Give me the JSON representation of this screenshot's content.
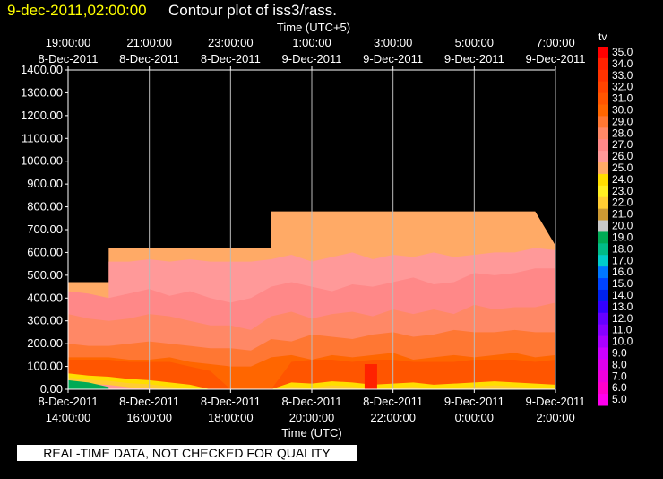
{
  "header": {
    "date_text": "9-dec-2011,02:00:00",
    "title": "Contour plot of iss3/rass."
  },
  "footer_note": "REAL-TIME DATA, NOT CHECKED FOR QUALITY",
  "chart_data": {
    "type": "heatmap",
    "top_axis_label": "Time (UTC+5)",
    "top_ticks": [
      [
        "19:00:00",
        "8-Dec-2011"
      ],
      [
        "21:00:00",
        "8-Dec-2011"
      ],
      [
        "23:00:00",
        "8-Dec-2011"
      ],
      [
        "1:00:00",
        "9-Dec-2011"
      ],
      [
        "3:00:00",
        "9-Dec-2011"
      ],
      [
        "5:00:00",
        "9-Dec-2011"
      ],
      [
        "7:00:00",
        "9-Dec-2011"
      ]
    ],
    "xlabel": "Time (UTC)",
    "bottom_ticks": [
      [
        "8-Dec-2011",
        "14:00:00"
      ],
      [
        "8-Dec-2011",
        "16:00:00"
      ],
      [
        "8-Dec-2011",
        "18:00:00"
      ],
      [
        "8-Dec-2011",
        "20:00:00"
      ],
      [
        "8-Dec-2011",
        "22:00:00"
      ],
      [
        "9-Dec-2011",
        "0:00:00"
      ],
      [
        "9-Dec-2011",
        "2:00:00"
      ]
    ],
    "xlim_hours_utc": [
      14.0,
      2.0
    ],
    "y_ticks": [
      "0.00",
      "100.00",
      "200.00",
      "300.00",
      "400.00",
      "500.00",
      "600.00",
      "700.00",
      "800.00",
      "900.00",
      "1000.00",
      "1100.00",
      "1200.00",
      "1300.00",
      "1400.00"
    ],
    "ylim": [
      0,
      1400
    ],
    "grid": "vertical lines at major time ticks",
    "colorbar": {
      "label": "tv",
      "levels": [
        "35.0",
        "34.0",
        "33.0",
        "32.0",
        "31.0",
        "30.0",
        "29.0",
        "28.0",
        "27.0",
        "26.0",
        "25.0",
        "24.0",
        "23.0",
        "22.0",
        "21.0",
        "20.0",
        "19.0",
        "18.0",
        "17.0",
        "16.0",
        "15.0",
        "14.0",
        "13.0",
        "12.0",
        "11.0",
        "10.0",
        "9.0",
        "8.0",
        "7.0",
        "6.0",
        "5.0"
      ],
      "colors": [
        "#ff0000",
        "#ff2200",
        "#ff3300",
        "#ff4400",
        "#ff5500",
        "#ff6600",
        "#ff7733",
        "#ff8866",
        "#ff8888",
        "#ff9999",
        "#ffaa66",
        "#ffdd00",
        "#ffee22",
        "#ffcc33",
        "#cc9933",
        "#c8c8c8",
        "#00aa55",
        "#00bb88",
        "#00cccc",
        "#0077ff",
        "#0044ff",
        "#0022ee",
        "#3300ff",
        "#6600ff",
        "#8800ff",
        "#aa00ff",
        "#cc00ff",
        "#dd00ee",
        "#ee00dd",
        "#ff00cc",
        "#ff00ee"
      ]
    },
    "x_hours_elapsed": [
      0,
      0.5,
      1,
      1.5,
      2,
      2.5,
      3,
      3.5,
      4,
      4.5,
      5,
      5.5,
      6,
      6.5,
      7,
      7.5,
      8,
      8.5,
      9,
      9.5,
      10,
      10.5,
      11,
      11.5,
      12
    ],
    "data_top_height_m": [
      470,
      470,
      620,
      620,
      620,
      620,
      620,
      620,
      620,
      620,
      780,
      780,
      780,
      780,
      780,
      780,
      780,
      780,
      780,
      780,
      780,
      780,
      780,
      780,
      630
    ],
    "isotherm_heights_m": [
      {
        "tv": "25.0",
        "heights": [
          null,
          null,
          null,
          null,
          null,
          null,
          null,
          null,
          null,
          null,
          690,
          700,
          690,
          700,
          680,
          690,
          700,
          680,
          700,
          690,
          690,
          700,
          700,
          680,
          650
        ]
      },
      {
        "tv": "26.0",
        "heights": [
          null,
          null,
          560,
          560,
          570,
          560,
          570,
          560,
          560,
          560,
          570,
          590,
          560,
          580,
          600,
          570,
          590,
          580,
          600,
          580,
          590,
          600,
          600,
          620,
          610
        ]
      },
      {
        "tv": "27.0",
        "heights": [
          430,
          420,
          400,
          420,
          440,
          410,
          430,
          400,
          380,
          400,
          450,
          470,
          450,
          430,
          460,
          450,
          470,
          490,
          460,
          470,
          510,
          500,
          510,
          530,
          530
        ]
      },
      {
        "tv": "28.0",
        "heights": [
          330,
          310,
          300,
          310,
          330,
          320,
          300,
          280,
          280,
          260,
          320,
          340,
          310,
          330,
          340,
          320,
          350,
          330,
          350,
          330,
          370,
          350,
          360,
          360,
          380
        ]
      },
      {
        "tv": "29.0",
        "heights": [
          200,
          190,
          190,
          200,
          210,
          200,
          190,
          180,
          180,
          170,
          220,
          210,
          240,
          230,
          220,
          240,
          250,
          230,
          240,
          260,
          250,
          250,
          260,
          250,
          250
        ]
      },
      {
        "tv": "30.0",
        "heights": [
          140,
          140,
          140,
          130,
          130,
          140,
          120,
          110,
          100,
          100,
          140,
          150,
          130,
          150,
          140,
          150,
          160,
          130,
          140,
          150,
          140,
          150,
          160,
          140,
          150
        ]
      },
      {
        "tv": "31.0",
        "heights": [
          130,
          130,
          130,
          120,
          120,
          120,
          100,
          80,
          0,
          0,
          0,
          120,
          130,
          130,
          120,
          130,
          130,
          120,
          120,
          120,
          130,
          130,
          130,
          120,
          130
        ]
      }
    ]
  }
}
